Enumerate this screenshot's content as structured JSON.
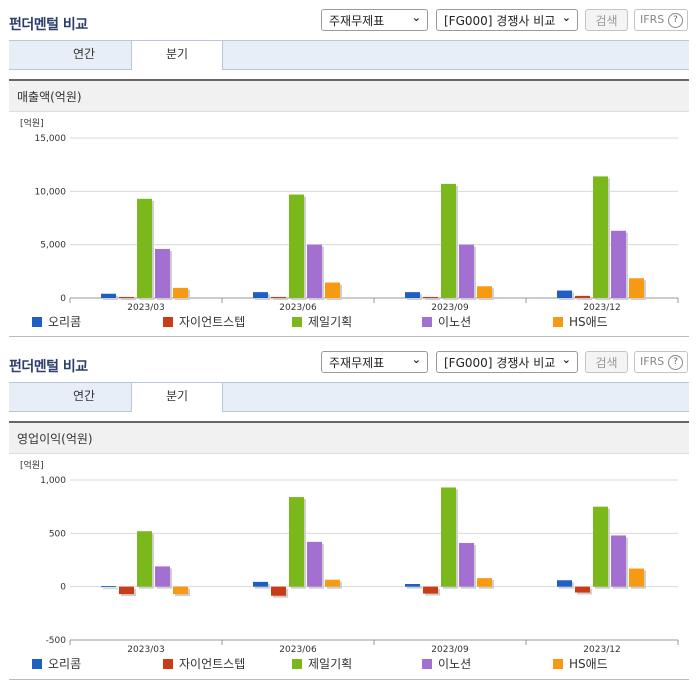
{
  "colors": {
    "series": [
      "#1f5fc4",
      "#c73d18",
      "#7ab81c",
      "#a36fd1",
      "#f59a12"
    ],
    "grid": "#d9d9d9"
  },
  "panels": [
    {
      "header": {
        "title": "펀더멘털 비교",
        "select1": "주재무제표",
        "select2": "[FG000] 경쟁사 비교",
        "search": "검색",
        "ifrs": "IFRS",
        "help": "?"
      },
      "tabs": [
        {
          "label": "연간"
        },
        {
          "label": "분기"
        }
      ],
      "active_tab": "분기",
      "subheader": "매출액(억원)",
      "unit": "[억원]"
    },
    {
      "header": {
        "title": "펀더멘털 비교",
        "select1": "주재무제표",
        "select2": "[FG000] 경쟁사 비교",
        "search": "검색",
        "ifrs": "IFRS",
        "help": "?"
      },
      "tabs": [
        {
          "label": "연간"
        },
        {
          "label": "분기"
        }
      ],
      "active_tab": "분기",
      "subheader": "영업이익(억원)",
      "unit": "[억원]"
    }
  ],
  "chart_data": [
    {
      "type": "bar",
      "title": "매출액(억원)",
      "ylabel": "[억원]",
      "categories": [
        "2023/03",
        "2023/06",
        "2023/09",
        "2023/12"
      ],
      "ylim": [
        0,
        15000
      ],
      "yticks": [
        0,
        5000,
        10000,
        15000
      ],
      "ytick_labels": [
        "0",
        "5,000",
        "10,000",
        "15,000"
      ],
      "grid": true,
      "legend": "bottom",
      "series": [
        {
          "name": "오리콤",
          "values": [
            400,
            550,
            550,
            700
          ]
        },
        {
          "name": "자이언트스텝",
          "values": [
            100,
            100,
            100,
            200
          ]
        },
        {
          "name": "제일기획",
          "values": [
            9300,
            9700,
            10700,
            11400
          ]
        },
        {
          "name": "이노션",
          "values": [
            4600,
            5000,
            5000,
            6300
          ]
        },
        {
          "name": "HS애드",
          "values": [
            950,
            1450,
            1100,
            1850
          ]
        }
      ]
    },
    {
      "type": "bar",
      "title": "영업이익(억원)",
      "ylabel": "[억원]",
      "categories": [
        "2023/03",
        "2023/06",
        "2023/09",
        "2023/12"
      ],
      "ylim": [
        -500,
        1000
      ],
      "yticks": [
        -500,
        0,
        500,
        1000
      ],
      "ytick_labels": [
        "-500",
        "0",
        "500",
        "1,000"
      ],
      "grid": true,
      "legend": "bottom",
      "series": [
        {
          "name": "오리콤",
          "values": [
            5,
            45,
            25,
            60
          ]
        },
        {
          "name": "자이언트스텝",
          "values": [
            -70,
            -85,
            -65,
            -55
          ]
        },
        {
          "name": "제일기획",
          "values": [
            520,
            840,
            930,
            750
          ]
        },
        {
          "name": "이노션",
          "values": [
            190,
            420,
            410,
            480
          ]
        },
        {
          "name": "HS애드",
          "values": [
            -70,
            65,
            80,
            170
          ]
        }
      ]
    }
  ]
}
